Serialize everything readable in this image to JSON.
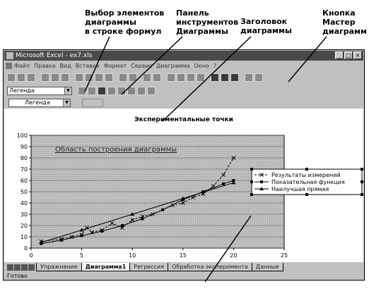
{
  "callouts": {
    "element_selector": [
      "Выбор элементов",
      "диаграммы",
      "в строке формул"
    ],
    "chart_toolbar": [
      "Панель",
      "инструментов",
      "Диаграммы"
    ],
    "chart_title": [
      "Заголовок",
      "диаграммы"
    ],
    "chart_wizard": [
      "Кнопка",
      "Мастер",
      "диаграмм"
    ]
  },
  "window": {
    "title": "Microsoft Excel - ex7.xls",
    "menu": [
      "Файл",
      "Правка",
      "Вид",
      "Вставка",
      "Формат",
      "Сервис",
      "Диаграмма",
      "Окно",
      "?"
    ]
  },
  "toolbar": {
    "element_combo": "Легенда"
  },
  "namebox": {
    "value": "Легенда"
  },
  "chart_data": {
    "type": "scatter",
    "title": "Экспериментальные точки",
    "plot_area_label": "Область построения диаграммы",
    "xlim": [
      0,
      25
    ],
    "ylim": [
      0,
      100
    ],
    "x_ticks": [
      0,
      5,
      10,
      15,
      20,
      25
    ],
    "y_ticks": [
      0,
      10,
      20,
      30,
      40,
      50,
      60,
      70,
      80,
      90,
      100
    ],
    "grid": true,
    "legend_position": "right",
    "series": [
      {
        "name": "Результаты измерений",
        "marker": "x",
        "line": "dashed",
        "x": [
          1,
          3,
          4,
          5,
          5.5,
          6,
          7,
          8,
          9,
          10,
          11,
          12,
          14,
          15,
          16,
          17,
          18,
          19,
          20
        ],
        "y": [
          6,
          8,
          10,
          12,
          18,
          14,
          16,
          22,
          18,
          25,
          28,
          30,
          38,
          40,
          45,
          48,
          55,
          65,
          80
        ]
      },
      {
        "name": "Показательная функция",
        "marker": "square",
        "line": "solid",
        "x": [
          1,
          3,
          5,
          7,
          9,
          11,
          13,
          15,
          17,
          19,
          20
        ],
        "y": [
          4,
          7,
          11,
          15,
          20,
          26,
          34,
          43,
          50,
          57,
          60
        ]
      },
      {
        "name": "Наилучшая прямая",
        "marker": "triangle",
        "line": "solid",
        "x": [
          1,
          5,
          10,
          15,
          20
        ],
        "y": [
          5,
          16,
          30,
          44,
          58
        ]
      }
    ]
  },
  "sheet_tabs": [
    "Упражнение",
    "Диаграмма1",
    "Регрессия",
    "Обработка эксперимента",
    "Данные"
  ],
  "active_tab_index": 1,
  "status": "Готово"
}
